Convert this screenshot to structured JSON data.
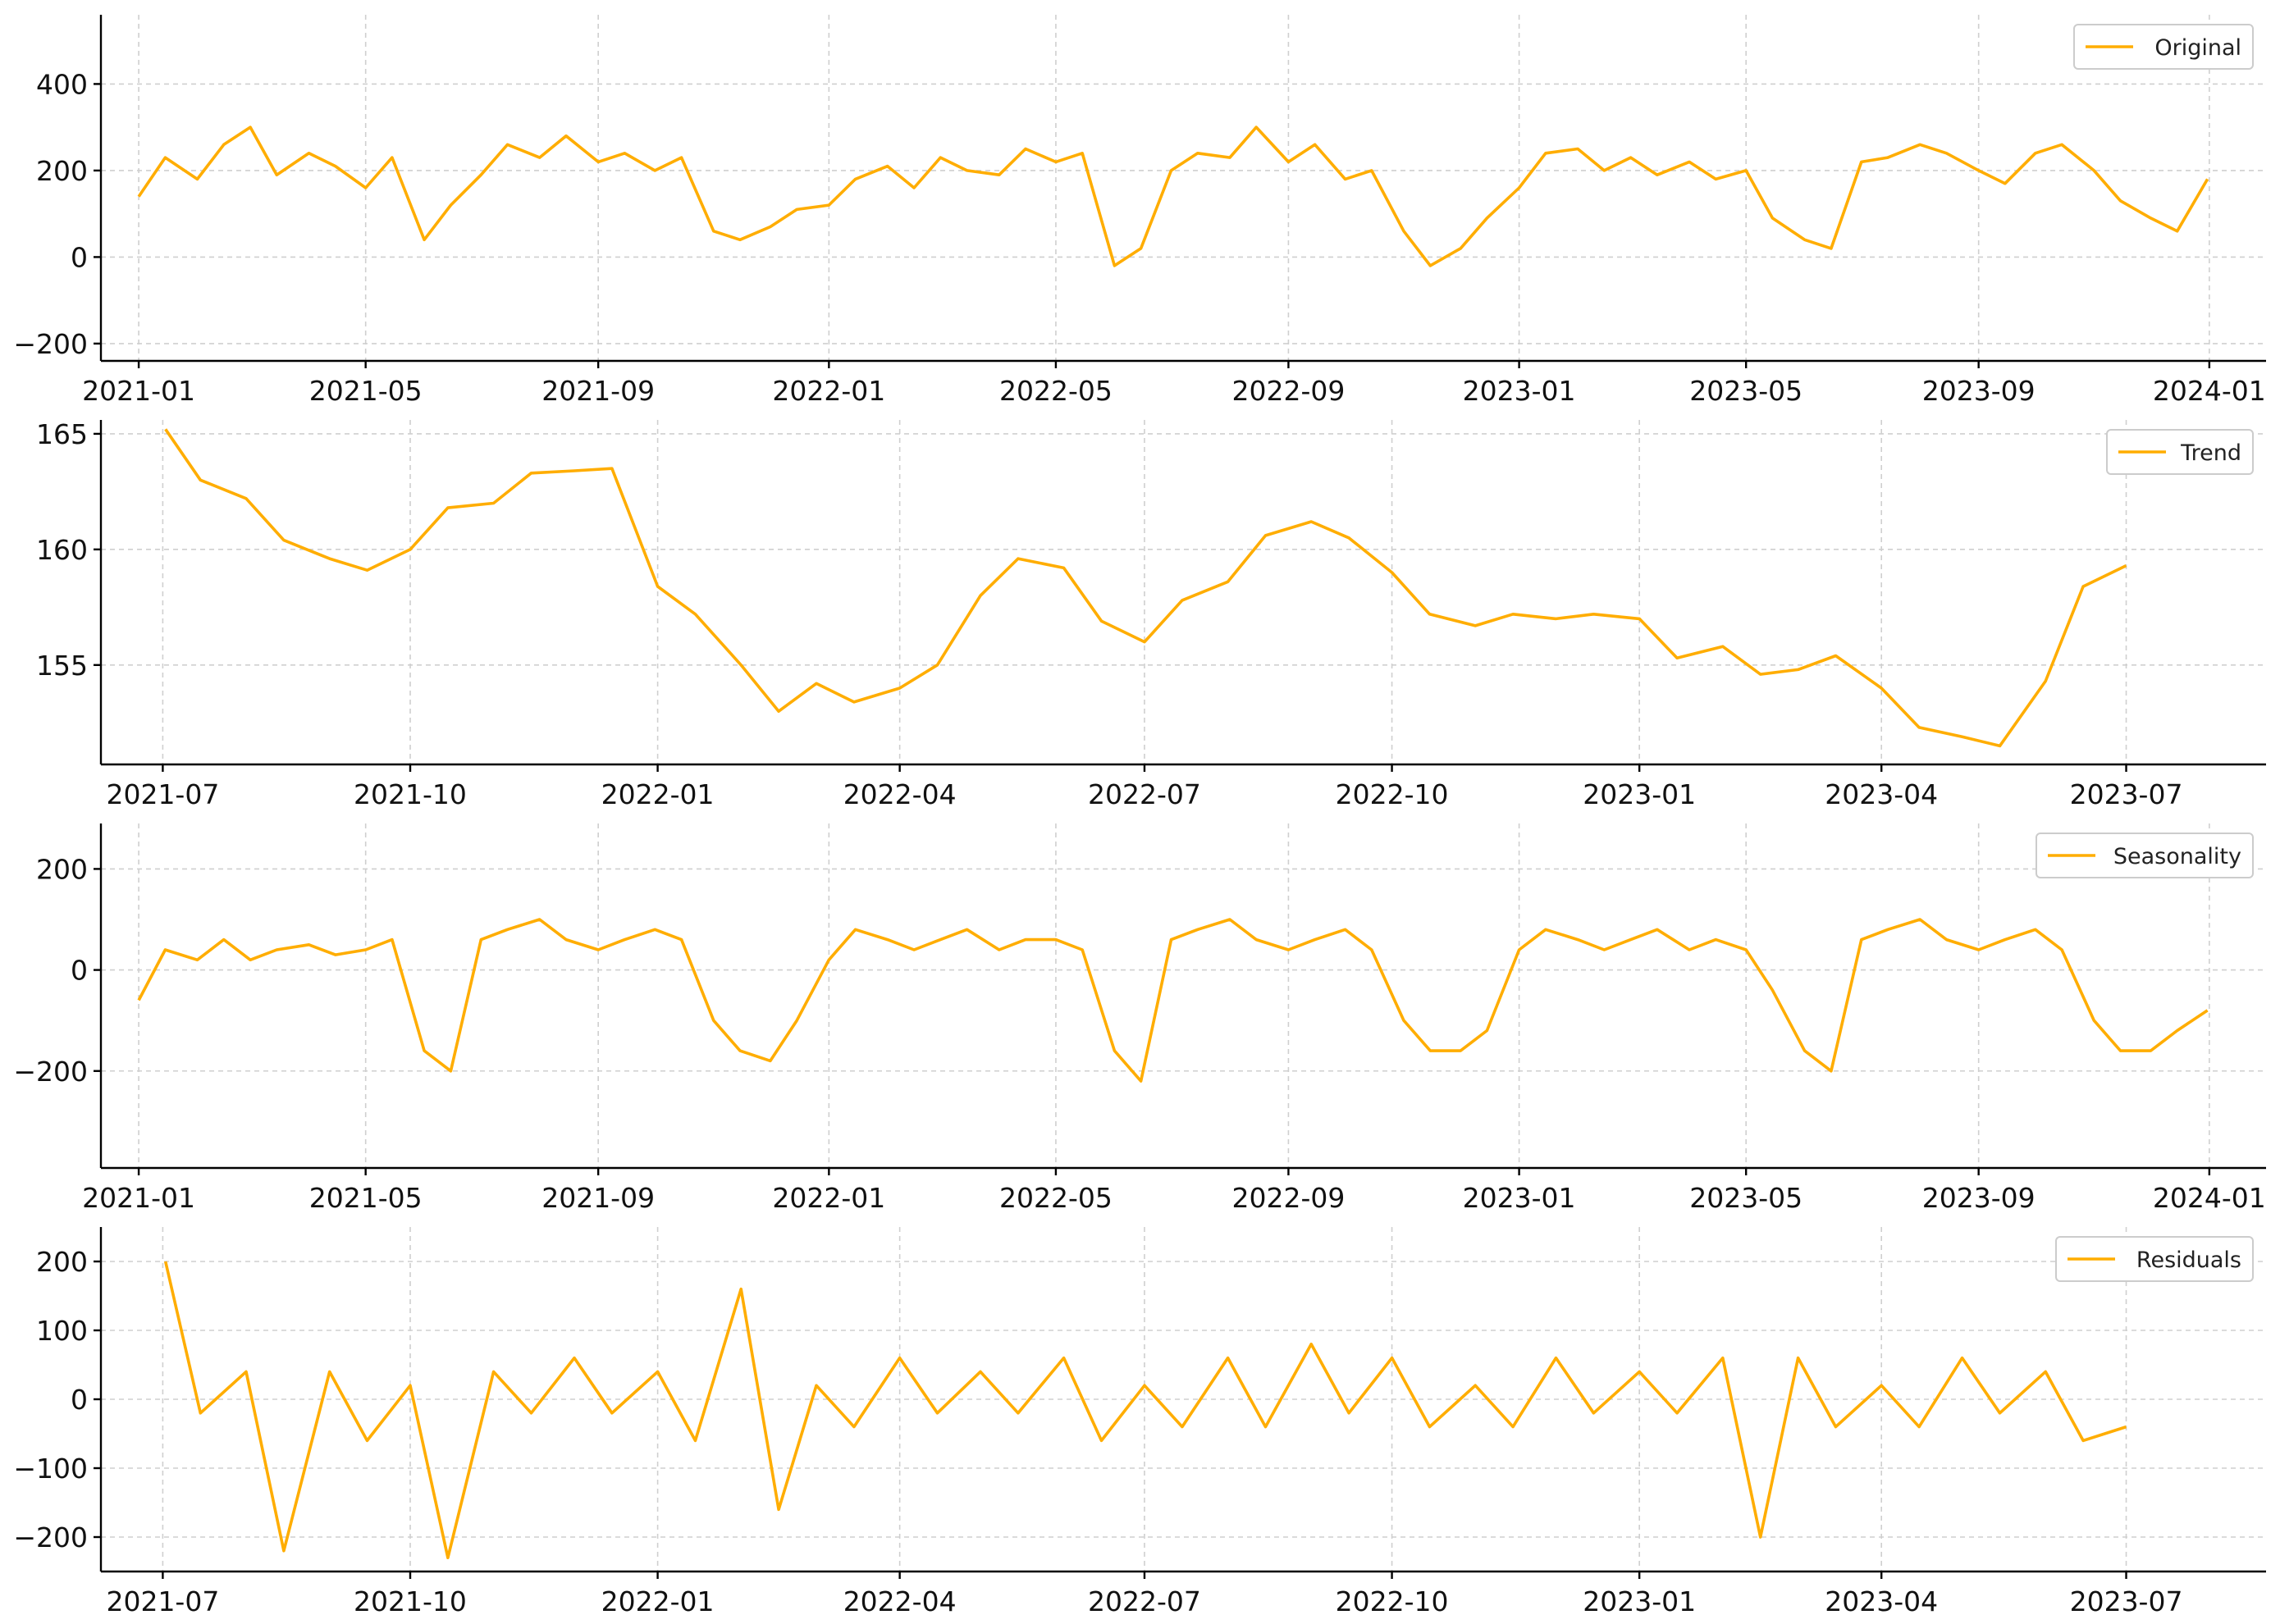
{
  "colors": {
    "series": "#FFAD00",
    "grid": "#cfcfcf",
    "axis": "#000000"
  },
  "chart_data": [
    {
      "type": "line",
      "legend": "Original",
      "legend_loc": "upper right",
      "grid": true,
      "xlim": [
        "2020-12-12",
        "2024-01-31"
      ],
      "ylim": [
        -240,
        560
      ],
      "xticks": [
        {
          "value": "2021-01-01",
          "label": "2021-01"
        },
        {
          "value": "2021-05-01",
          "label": "2021-05"
        },
        {
          "value": "2021-09-01",
          "label": "2021-09"
        },
        {
          "value": "2022-01-01",
          "label": "2022-01"
        },
        {
          "value": "2022-05-01",
          "label": "2022-05"
        },
        {
          "value": "2022-09-01",
          "label": "2022-09"
        },
        {
          "value": "2023-01-01",
          "label": "2023-01"
        },
        {
          "value": "2023-05-01",
          "label": "2023-05"
        },
        {
          "value": "2023-09-01",
          "label": "2023-09"
        },
        {
          "value": "2024-01-01",
          "label": "2024-01"
        }
      ],
      "yticks": [
        {
          "value": -200,
          "label": "−200"
        },
        {
          "value": 0,
          "label": "0"
        },
        {
          "value": 200,
          "label": "200"
        },
        {
          "value": 400,
          "label": "400"
        }
      ],
      "series": [
        {
          "name": "Original",
          "x": [
            "2021-01-01",
            "2021-01-15",
            "2021-02-01",
            "2021-02-15",
            "2021-03-01",
            "2021-03-15",
            "2021-04-01",
            "2021-04-15",
            "2021-05-01",
            "2021-05-15",
            "2021-06-01",
            "2021-06-15",
            "2021-07-01",
            "2021-07-15",
            "2021-08-01",
            "2021-08-15",
            "2021-09-01",
            "2021-09-15",
            "2021-10-01",
            "2021-10-15",
            "2021-11-01",
            "2021-11-15",
            "2021-12-01",
            "2021-12-15",
            "2022-01-01",
            "2022-01-15",
            "2022-02-01",
            "2022-02-15",
            "2022-03-01",
            "2022-03-15",
            "2022-04-01",
            "2022-04-15",
            "2022-05-01",
            "2022-05-15",
            "2022-06-01",
            "2022-06-15",
            "2022-07-01",
            "2022-07-15",
            "2022-08-01",
            "2022-08-15",
            "2022-09-01",
            "2022-09-15",
            "2022-10-01",
            "2022-10-15",
            "2022-11-01",
            "2022-11-15",
            "2022-12-01",
            "2022-12-15",
            "2023-01-01",
            "2023-01-15",
            "2023-02-01",
            "2023-02-15",
            "2023-03-01",
            "2023-03-15",
            "2023-04-01",
            "2023-04-15",
            "2023-05-01",
            "2023-05-15",
            "2023-06-01",
            "2023-06-15",
            "2023-07-01",
            "2023-07-15",
            "2023-08-01",
            "2023-08-15",
            "2023-09-01",
            "2023-09-15",
            "2023-10-01",
            "2023-10-15",
            "2023-11-01",
            "2023-11-15",
            "2023-12-01",
            "2023-12-15",
            "2023-12-31"
          ],
          "y": [
            140,
            230,
            180,
            260,
            300,
            190,
            240,
            210,
            160,
            230,
            40,
            120,
            190,
            260,
            230,
            280,
            220,
            240,
            200,
            230,
            60,
            40,
            70,
            110,
            120,
            180,
            210,
            160,
            230,
            200,
            190,
            250,
            220,
            240,
            -20,
            20,
            200,
            240,
            230,
            300,
            220,
            260,
            180,
            200,
            60,
            -20,
            20,
            90,
            160,
            240,
            250,
            200,
            230,
            190,
            220,
            180,
            200,
            90,
            40,
            20,
            220,
            230,
            260,
            240,
            200,
            170,
            240,
            260,
            200,
            130,
            90,
            60,
            180
          ]
        }
      ]
    },
    {
      "type": "line",
      "legend": "Trend",
      "legend_loc": "upper right",
      "grid": true,
      "xlim": [
        "2021-06-08",
        "2023-08-22"
      ],
      "ylim": [
        150.7,
        165.6
      ],
      "xticks": [
        {
          "value": "2021-07-01",
          "label": "2021-07"
        },
        {
          "value": "2021-10-01",
          "label": "2021-10"
        },
        {
          "value": "2022-01-01",
          "label": "2022-01"
        },
        {
          "value": "2022-04-01",
          "label": "2022-04"
        },
        {
          "value": "2022-07-01",
          "label": "2022-07"
        },
        {
          "value": "2022-10-01",
          "label": "2022-10"
        },
        {
          "value": "2023-01-01",
          "label": "2023-01"
        },
        {
          "value": "2023-04-01",
          "label": "2023-04"
        },
        {
          "value": "2023-07-01",
          "label": "2023-07"
        }
      ],
      "yticks": [
        {
          "value": 155,
          "label": "155"
        },
        {
          "value": 160,
          "label": "160"
        },
        {
          "value": 165,
          "label": "165"
        }
      ],
      "series": [
        {
          "name": "Trend",
          "x": [
            "2021-07-02",
            "2021-07-15",
            "2021-08-01",
            "2021-08-15",
            "2021-09-01",
            "2021-09-15",
            "2021-10-01",
            "2021-10-15",
            "2021-11-01",
            "2021-11-15",
            "2021-12-01",
            "2021-12-15",
            "2022-01-01",
            "2022-01-15",
            "2022-02-01",
            "2022-02-15",
            "2022-03-01",
            "2022-03-15",
            "2022-04-01",
            "2022-04-15",
            "2022-05-01",
            "2022-05-15",
            "2022-06-01",
            "2022-06-15",
            "2022-07-01",
            "2022-07-15",
            "2022-08-01",
            "2022-08-15",
            "2022-09-01",
            "2022-09-15",
            "2022-10-01",
            "2022-10-15",
            "2022-11-01",
            "2022-11-15",
            "2022-12-01",
            "2022-12-15",
            "2023-01-01",
            "2023-01-15",
            "2023-02-01",
            "2023-02-15",
            "2023-03-01",
            "2023-03-15",
            "2023-04-01",
            "2023-04-15",
            "2023-05-01",
            "2023-05-15",
            "2023-06-01",
            "2023-06-15",
            "2023-07-01"
          ],
          "y": [
            165.2,
            163.0,
            162.2,
            160.4,
            159.6,
            159.1,
            160.0,
            161.8,
            162.0,
            163.3,
            163.4,
            163.5,
            158.4,
            157.2,
            155.0,
            153.0,
            154.2,
            153.4,
            154.0,
            155.0,
            158.0,
            159.6,
            159.2,
            156.9,
            156.0,
            157.8,
            158.6,
            160.6,
            161.2,
            160.5,
            159.0,
            157.2,
            156.7,
            157.2,
            157.0,
            157.2,
            157.0,
            155.3,
            155.8,
            154.6,
            154.8,
            155.4,
            154.0,
            152.3,
            151.9,
            151.5,
            154.3,
            158.4,
            159.3
          ]
        }
      ]
    },
    {
      "type": "line",
      "legend": "Seasonality",
      "legend_loc": "upper right",
      "grid": true,
      "xlim": [
        "2020-12-12",
        "2024-01-31"
      ],
      "ylim": [
        -392,
        290
      ],
      "xticks": [
        {
          "value": "2021-01-01",
          "label": "2021-01"
        },
        {
          "value": "2021-05-01",
          "label": "2021-05"
        },
        {
          "value": "2021-09-01",
          "label": "2021-09"
        },
        {
          "value": "2022-01-01",
          "label": "2022-01"
        },
        {
          "value": "2022-05-01",
          "label": "2022-05"
        },
        {
          "value": "2022-09-01",
          "label": "2022-09"
        },
        {
          "value": "2023-01-01",
          "label": "2023-01"
        },
        {
          "value": "2023-05-01",
          "label": "2023-05"
        },
        {
          "value": "2023-09-01",
          "label": "2023-09"
        },
        {
          "value": "2024-01-01",
          "label": "2024-01"
        }
      ],
      "yticks": [
        {
          "value": -200,
          "label": "−200"
        },
        {
          "value": 0,
          "label": "0"
        },
        {
          "value": 200,
          "label": "200"
        }
      ],
      "series": [
        {
          "name": "Seasonality",
          "x": [
            "2021-01-01",
            "2021-01-15",
            "2021-02-01",
            "2021-02-15",
            "2021-03-01",
            "2021-03-15",
            "2021-04-01",
            "2021-04-15",
            "2021-05-01",
            "2021-05-15",
            "2021-06-01",
            "2021-06-15",
            "2021-07-01",
            "2021-07-15",
            "2021-08-01",
            "2021-08-15",
            "2021-09-01",
            "2021-09-15",
            "2021-10-01",
            "2021-10-15",
            "2021-11-01",
            "2021-11-15",
            "2021-12-01",
            "2021-12-15",
            "2022-01-01",
            "2022-01-15",
            "2022-02-01",
            "2022-02-15",
            "2022-03-01",
            "2022-03-15",
            "2022-04-01",
            "2022-04-15",
            "2022-05-01",
            "2022-05-15",
            "2022-06-01",
            "2022-06-15",
            "2022-07-01",
            "2022-07-15",
            "2022-08-01",
            "2022-08-15",
            "2022-09-01",
            "2022-09-15",
            "2022-10-01",
            "2022-10-15",
            "2022-11-01",
            "2022-11-15",
            "2022-12-01",
            "2022-12-15",
            "2023-01-01",
            "2023-01-15",
            "2023-02-01",
            "2023-02-15",
            "2023-03-01",
            "2023-03-15",
            "2023-04-01",
            "2023-04-15",
            "2023-05-01",
            "2023-05-15",
            "2023-06-01",
            "2023-06-15",
            "2023-07-01",
            "2023-07-15",
            "2023-08-01",
            "2023-08-15",
            "2023-09-01",
            "2023-09-15",
            "2023-10-01",
            "2023-10-15",
            "2023-11-01",
            "2023-11-15",
            "2023-12-01",
            "2023-12-15",
            "2023-12-31"
          ],
          "y": [
            -60,
            40,
            20,
            60,
            20,
            40,
            50,
            30,
            40,
            60,
            -160,
            -200,
            60,
            80,
            100,
            60,
            40,
            60,
            80,
            60,
            -100,
            -160,
            -180,
            -100,
            20,
            80,
            60,
            40,
            60,
            80,
            40,
            60,
            60,
            40,
            -160,
            -220,
            60,
            80,
            100,
            60,
            40,
            60,
            80,
            40,
            -100,
            -160,
            -160,
            -120,
            40,
            80,
            60,
            40,
            60,
            80,
            40,
            60,
            40,
            -40,
            -160,
            -200,
            60,
            80,
            100,
            60,
            40,
            60,
            80,
            40,
            -100,
            -160,
            -160,
            -120,
            -80
          ]
        }
      ]
    },
    {
      "type": "line",
      "legend": "Residuals",
      "legend_loc": "upper right",
      "grid": true,
      "xlim": [
        "2021-06-08",
        "2023-08-22"
      ],
      "ylim": [
        -250,
        250
      ],
      "xticks": [
        {
          "value": "2021-07-01",
          "label": "2021-07"
        },
        {
          "value": "2021-10-01",
          "label": "2021-10"
        },
        {
          "value": "2022-01-01",
          "label": "2022-01"
        },
        {
          "value": "2022-04-01",
          "label": "2022-04"
        },
        {
          "value": "2022-07-01",
          "label": "2022-07"
        },
        {
          "value": "2022-10-01",
          "label": "2022-10"
        },
        {
          "value": "2023-01-01",
          "label": "2023-01"
        },
        {
          "value": "2023-04-01",
          "label": "2023-04"
        },
        {
          "value": "2023-07-01",
          "label": "2023-07"
        }
      ],
      "yticks": [
        {
          "value": -200,
          "label": "−200"
        },
        {
          "value": -100,
          "label": "−100"
        },
        {
          "value": 0,
          "label": "0"
        },
        {
          "value": 100,
          "label": "100"
        },
        {
          "value": 200,
          "label": "200"
        }
      ],
      "series": [
        {
          "name": "Residuals",
          "x": [
            "2021-07-02",
            "2021-07-15",
            "2021-08-01",
            "2021-08-15",
            "2021-09-01",
            "2021-09-15",
            "2021-10-01",
            "2021-10-15",
            "2021-11-01",
            "2021-11-15",
            "2021-12-01",
            "2021-12-15",
            "2022-01-01",
            "2022-01-15",
            "2022-02-01",
            "2022-02-15",
            "2022-03-01",
            "2022-03-15",
            "2022-04-01",
            "2022-04-15",
            "2022-05-01",
            "2022-05-15",
            "2022-06-01",
            "2022-06-15",
            "2022-07-01",
            "2022-07-15",
            "2022-08-01",
            "2022-08-15",
            "2022-09-01",
            "2022-09-15",
            "2022-10-01",
            "2022-10-15",
            "2022-11-01",
            "2022-11-15",
            "2022-12-01",
            "2022-12-15",
            "2023-01-01",
            "2023-01-15",
            "2023-02-01",
            "2023-02-15",
            "2023-03-01",
            "2023-03-15",
            "2023-04-01",
            "2023-04-15",
            "2023-05-01",
            "2023-05-15",
            "2023-06-01",
            "2023-06-15",
            "2023-07-01"
          ],
          "y": [
            200,
            -20,
            40,
            -220,
            40,
            -60,
            20,
            -230,
            40,
            -20,
            60,
            -20,
            40,
            -60,
            160,
            -160,
            20,
            -40,
            60,
            -20,
            40,
            -20,
            60,
            -60,
            20,
            -40,
            60,
            -40,
            80,
            -20,
            60,
            -40,
            20,
            -40,
            60,
            -20,
            40,
            -20,
            60,
            -200,
            60,
            -40,
            20,
            -40,
            60,
            -20,
            40,
            -60,
            -40
          ]
        }
      ]
    }
  ]
}
